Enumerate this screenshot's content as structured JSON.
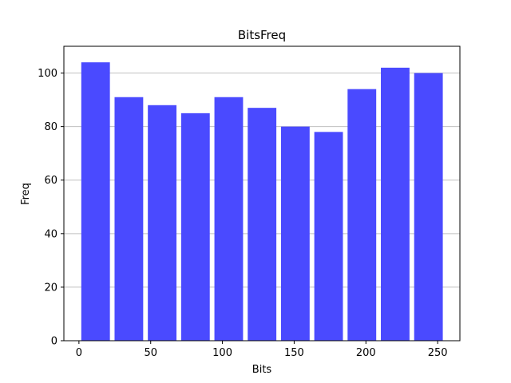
{
  "chart_data": {
    "type": "bar",
    "title": "BitsFreq",
    "xlabel": "Bits",
    "ylabel": "Freq",
    "bins": [
      {
        "start": 0,
        "end": 23.2,
        "value": 104
      },
      {
        "start": 23.2,
        "end": 46.4,
        "value": 91
      },
      {
        "start": 46.4,
        "end": 69.6,
        "value": 88
      },
      {
        "start": 69.6,
        "end": 92.8,
        "value": 85
      },
      {
        "start": 92.8,
        "end": 116.0,
        "value": 91
      },
      {
        "start": 116.0,
        "end": 139.2,
        "value": 87
      },
      {
        "start": 139.2,
        "end": 162.4,
        "value": 80
      },
      {
        "start": 162.4,
        "end": 185.6,
        "value": 78
      },
      {
        "start": 185.6,
        "end": 208.8,
        "value": 94
      },
      {
        "start": 208.8,
        "end": 232.0,
        "value": 102
      },
      {
        "start": 232.0,
        "end": 255.2,
        "value": 100
      }
    ],
    "xlim": [
      -10.5,
      265.5
    ],
    "ylim": [
      0,
      110
    ],
    "xticks": [
      0,
      50,
      100,
      150,
      200,
      250
    ],
    "yticks": [
      0,
      20,
      40,
      60,
      80,
      100
    ],
    "bar_color": "#4a4aff",
    "grid": "y",
    "grid_color": "#c0c0c0"
  }
}
